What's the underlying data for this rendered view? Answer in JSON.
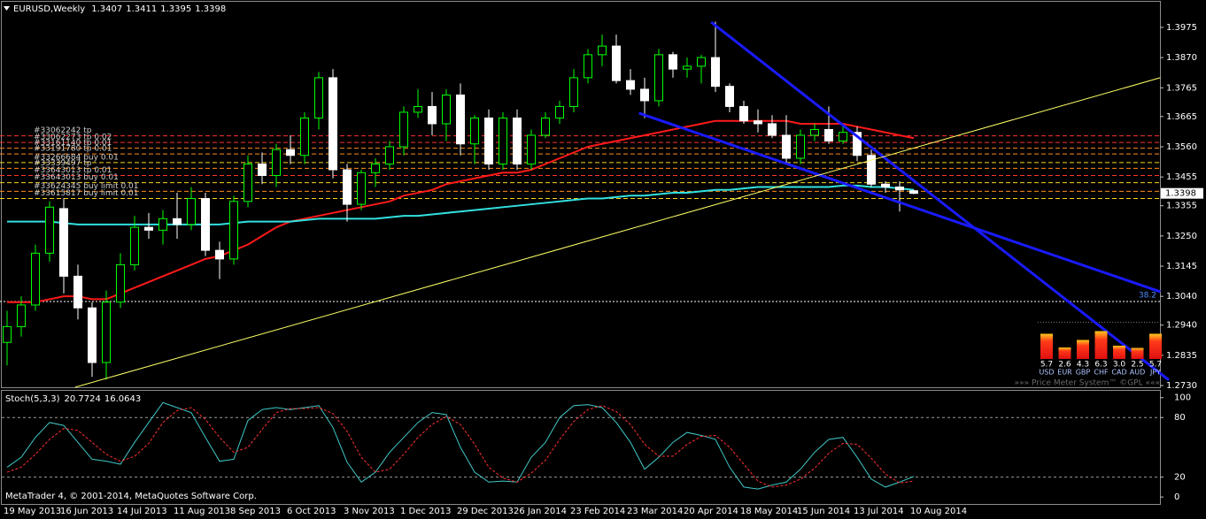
{
  "chart_data": [
    {
      "type": "candlestick",
      "symbol": "EURUSD,Weekly",
      "categories": [
        "19 May 2013",
        null,
        null,
        null,
        "16 Jun 2013",
        null,
        null,
        null,
        "14 Jul 2013",
        null,
        null,
        null,
        "11 Aug 2013",
        null,
        null,
        null,
        "8 Sep 2013",
        null,
        null,
        null,
        "6 Oct 2013",
        null,
        null,
        null,
        "3 Nov 2013",
        null,
        null,
        null,
        "1 Dec 2013",
        null,
        null,
        null,
        "29 Dec 2013",
        null,
        null,
        null,
        "26 Jan 2014",
        null,
        null,
        null,
        "23 Feb 2014",
        null,
        null,
        null,
        "23 Mar 2014",
        null,
        null,
        null,
        "20 Apr 2014",
        null,
        null,
        null,
        "18 May 2014",
        null,
        null,
        null,
        "15 Jun 2014",
        null,
        null,
        null,
        "13 Jul 2014",
        null,
        null,
        null,
        "10 Aug 2014"
      ],
      "ohlc": [
        [
          1.288,
          1.299,
          1.28,
          1.2935
        ],
        [
          1.2935,
          1.304,
          1.29,
          1.301
        ],
        [
          1.301,
          1.322,
          1.299,
          1.319
        ],
        [
          1.319,
          1.337,
          1.316,
          1.335
        ],
        [
          1.3345,
          1.338,
          1.305,
          1.311
        ],
        [
          1.311,
          1.315,
          1.296,
          1.3
        ],
        [
          1.3,
          1.302,
          1.276,
          1.281
        ],
        [
          1.281,
          1.306,
          1.275,
          1.302
        ],
        [
          1.302,
          1.319,
          1.3,
          1.315
        ],
        [
          1.315,
          1.332,
          1.313,
          1.328
        ],
        [
          1.328,
          1.333,
          1.324,
          1.327
        ],
        [
          1.327,
          1.334,
          1.322,
          1.331
        ],
        [
          1.331,
          1.34,
          1.324,
          1.329
        ],
        [
          1.329,
          1.342,
          1.327,
          1.338
        ],
        [
          1.338,
          1.34,
          1.318,
          1.32
        ],
        [
          1.32,
          1.323,
          1.31,
          1.317
        ],
        [
          1.317,
          1.339,
          1.315,
          1.337
        ],
        [
          1.337,
          1.353,
          1.335,
          1.35
        ],
        [
          1.35,
          1.354,
          1.343,
          1.346
        ],
        [
          1.346,
          1.357,
          1.342,
          1.355
        ],
        [
          1.355,
          1.36,
          1.35,
          1.353
        ],
        [
          1.353,
          1.368,
          1.35,
          1.366
        ],
        [
          1.366,
          1.382,
          1.362,
          1.38
        ],
        [
          1.38,
          1.383,
          1.345,
          1.348
        ],
        [
          1.348,
          1.35,
          1.33,
          1.336
        ],
        [
          1.336,
          1.348,
          1.334,
          1.347
        ],
        [
          1.347,
          1.352,
          1.342,
          1.35
        ],
        [
          1.35,
          1.358,
          1.348,
          1.356
        ],
        [
          1.356,
          1.37,
          1.353,
          1.368
        ],
        [
          1.368,
          1.376,
          1.366,
          1.37
        ],
        [
          1.37,
          1.375,
          1.36,
          1.364
        ],
        [
          1.364,
          1.376,
          1.358,
          1.374
        ],
        [
          1.374,
          1.378,
          1.353,
          1.357
        ],
        [
          1.357,
          1.367,
          1.35,
          1.366
        ],
        [
          1.366,
          1.369,
          1.348,
          1.35
        ],
        [
          1.35,
          1.368,
          1.348,
          1.366
        ],
        [
          1.366,
          1.369,
          1.348,
          1.35
        ],
        [
          1.35,
          1.362,
          1.348,
          1.36
        ],
        [
          1.36,
          1.368,
          1.359,
          1.366
        ],
        [
          1.366,
          1.372,
          1.364,
          1.37
        ],
        [
          1.37,
          1.383,
          1.368,
          1.38
        ],
        [
          1.38,
          1.39,
          1.378,
          1.388
        ],
        [
          1.388,
          1.395,
          1.384,
          1.391
        ],
        [
          1.391,
          1.395,
          1.378,
          1.379
        ],
        [
          1.379,
          1.383,
          1.374,
          1.376
        ],
        [
          1.376,
          1.38,
          1.366,
          1.372
        ],
        [
          1.372,
          1.39,
          1.37,
          1.388
        ],
        [
          1.388,
          1.389,
          1.38,
          1.383
        ],
        [
          1.383,
          1.387,
          1.38,
          1.384
        ],
        [
          1.384,
          1.388,
          1.378,
          1.387
        ],
        [
          1.387,
          1.3995,
          1.375,
          1.377
        ],
        [
          1.377,
          1.378,
          1.368,
          1.37
        ],
        [
          1.37,
          1.372,
          1.364,
          1.365
        ],
        [
          1.365,
          1.369,
          1.361,
          1.364
        ],
        [
          1.364,
          1.367,
          1.359,
          1.36
        ],
        [
          1.36,
          1.367,
          1.35,
          1.352
        ],
        [
          1.352,
          1.362,
          1.35,
          1.36
        ],
        [
          1.36,
          1.364,
          1.358,
          1.362
        ],
        [
          1.362,
          1.37,
          1.357,
          1.358
        ],
        [
          1.358,
          1.363,
          1.357,
          1.361
        ],
        [
          1.361,
          1.363,
          1.351,
          1.353
        ],
        [
          1.353,
          1.355,
          1.342,
          1.343
        ],
        [
          1.343,
          1.344,
          1.34,
          1.342
        ],
        [
          1.342,
          1.344,
          1.3335,
          1.341
        ],
        [
          1.3407,
          1.3411,
          1.3395,
          1.3398
        ]
      ],
      "up_color": "#00ff00",
      "down_color": "#ffffff",
      "ylim": [
        1.2724,
        1.4064
      ],
      "yticks": [
        1.3975,
        {
          "value": 1.387,
          "label": "1.3870"
        },
        1.3765,
        1.3665,
        {
          "value": 1.356,
          "label": "1.3560"
        },
        1.3455,
        1.3355,
        {
          "value": 1.325,
          "label": "1.3250"
        },
        1.3145,
        {
          "value": 1.304,
          "label": "1.3040"
        },
        {
          "value": 1.294,
          "label": "1.2940"
        },
        1.2835,
        {
          "value": 1.273,
          "label": "1.2730"
        }
      ],
      "lines": [
        {
          "color": "#ff1a1a",
          "values": [
            1.302,
            1.302,
            1.302,
            1.303,
            1.304,
            1.304,
            1.303,
            1.303,
            1.305,
            1.307,
            1.309,
            1.311,
            1.313,
            1.315,
            1.317,
            1.318,
            1.32,
            1.322,
            1.325,
            1.328,
            1.33,
            1.331,
            1.332,
            1.333,
            1.334,
            1.335,
            1.336,
            1.337,
            1.339,
            1.34,
            1.341,
            1.343,
            1.344,
            1.345,
            1.346,
            1.347,
            1.347,
            1.348,
            1.35,
            1.352,
            1.354,
            1.356,
            1.357,
            1.358,
            1.359,
            1.36,
            1.361,
            1.362,
            1.363,
            1.364,
            1.365,
            1.365,
            1.365,
            1.365,
            1.365,
            1.365,
            1.364,
            1.364,
            1.364,
            1.364,
            1.363,
            1.362,
            1.361,
            1.36,
            1.359
          ]
        },
        {
          "color": "#33e0e0",
          "values": [
            1.33,
            1.33,
            1.33,
            1.33,
            1.3295,
            1.329,
            1.329,
            1.329,
            1.329,
            1.329,
            1.329,
            1.329,
            1.329,
            1.329,
            1.329,
            1.329,
            1.3295,
            1.33,
            1.33,
            1.33,
            1.33,
            1.3305,
            1.331,
            1.331,
            1.331,
            1.331,
            1.331,
            1.3315,
            1.332,
            1.332,
            1.3325,
            1.333,
            1.3335,
            1.334,
            1.3345,
            1.335,
            1.3355,
            1.336,
            1.3365,
            1.337,
            1.3375,
            1.338,
            1.338,
            1.3385,
            1.339,
            1.339,
            1.3395,
            1.34,
            1.34,
            1.3405,
            1.341,
            1.341,
            1.3415,
            1.342,
            1.342,
            1.342,
            1.342,
            1.342,
            1.342,
            1.3425,
            1.3425,
            1.342,
            1.342,
            1.3415,
            1.341
          ]
        }
      ],
      "orders": [
        {
          "label": "#33062242 tp",
          "price": 1.3598,
          "color": "#ff3030"
        },
        {
          "label": "#33062273 tp 0.02",
          "price": 1.3575,
          "color": "#ff3030"
        },
        {
          "label": "#33161140 tp 0.01",
          "price": 1.3555,
          "color": "#ff8c1a"
        },
        {
          "label": "#33191780 tp 0.01",
          "price": 1.3535,
          "color": "#ff8c1a"
        },
        {
          "label": "#33266684 buy 0.01",
          "price": 1.3505,
          "color": "#ffd21a"
        },
        {
          "label": "#33339497 tp",
          "price": 1.3485,
          "color": "#ff8c1a"
        },
        {
          "label": "#33643013 tp 0.01",
          "price": 1.346,
          "color": "#ff3030"
        },
        {
          "label": "#33643013 buy 0.01",
          "price": 1.3435,
          "color": "#ffd21a"
        },
        {
          "label": "#33624345 buy limit 0.01",
          "price": 1.3405,
          "color": "#ff8c1a"
        },
        {
          "label": "#33615817 buy limit 0.01",
          "price": 1.338,
          "color": "#ffd21a"
        }
      ],
      "trendlines": [
        {
          "color": "#1a1aff",
          "width": 3,
          "from": [
            49.7,
            1.3993
          ],
          "to": [
            82,
            1.2749
          ]
        },
        {
          "color": "#1a1aff",
          "width": 3,
          "from": [
            44.6,
            1.3677
          ],
          "to": [
            81.4,
            1.3056
          ]
        },
        {
          "color": "#ffff66",
          "width": 1,
          "from": [
            4.8,
            1.2724
          ],
          "to": [
            81.4,
            1.38
          ]
        }
      ],
      "fib": {
        "label": 38.2,
        "price": 1.3022
      },
      "price_meter": {
        "currencies": [
          "USD",
          "EUR",
          "GBP",
          "CHF",
          "CAD",
          "AUD",
          "JPY"
        ],
        "values": [
          5.7,
          2.6,
          4.3,
          6.3,
          3.0,
          2.5,
          5.7
        ],
        "value_labels": [
          "5.7",
          "2.6",
          "4.3",
          "6.3",
          "3.0",
          "2.5",
          "5.7"
        ],
        "footer": "»»» Price Meter System™ ©GPL «««"
      }
    },
    {
      "type": "line",
      "title": "Stoch(5,3,3)",
      "series": [
        {
          "color": "#40c8c8",
          "dash": false,
          "values": [
            30,
            40,
            60,
            75,
            72,
            55,
            38,
            36,
            33,
            55,
            75,
            95,
            90,
            85,
            60,
            36,
            38,
            77,
            88,
            90,
            88,
            90,
            92,
            70,
            35,
            15,
            25,
            45,
            60,
            75,
            85,
            83,
            50,
            25,
            15,
            16,
            15,
            40,
            55,
            80,
            92,
            93,
            90,
            75,
            55,
            28,
            40,
            55,
            65,
            62,
            58,
            30,
            10,
            8,
            12,
            15,
            28,
            45,
            58,
            60,
            40,
            18,
            10,
            15,
            20.7724
          ]
        },
        {
          "color": "#ff3030",
          "dash": true,
          "values": [
            25,
            30,
            43,
            58,
            69,
            67,
            55,
            43,
            36,
            41,
            54,
            75,
            87,
            90,
            78,
            60,
            45,
            50,
            68,
            85,
            89,
            89,
            90,
            84,
            66,
            40,
            25,
            28,
            43,
            60,
            73,
            81,
            73,
            53,
            30,
            19,
            15,
            24,
            37,
            58,
            76,
            88,
            92,
            86,
            73,
            53,
            41,
            41,
            53,
            61,
            62,
            50,
            33,
            16,
            10,
            12,
            18,
            29,
            44,
            54,
            53,
            39,
            23,
            14,
            16.0643
          ]
        }
      ],
      "ylim": [
        -7,
        106
      ],
      "yticks": [
        100,
        80,
        20,
        0
      ],
      "levels": [
        80,
        20
      ]
    }
  ],
  "watermark": "MetaTrader 4, © 2001-2014, MetaQuotes Software Corp."
}
